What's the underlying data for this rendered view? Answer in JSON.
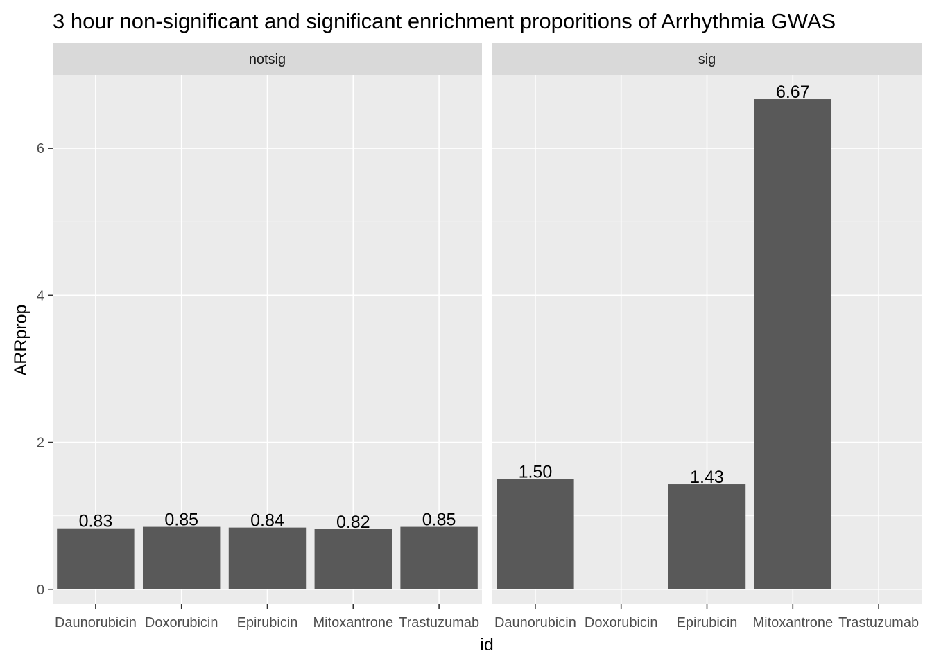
{
  "chart_data": {
    "type": "bar",
    "title": "3 hour non-significant and significant enrichment proporitions of Arrhythmia GWAS",
    "xlabel": "id",
    "ylabel": "ARRprop",
    "categories": [
      "Daunorubicin",
      "Doxorubicin",
      "Epirubicin",
      "Mitoxantrone",
      "Trastuzumab"
    ],
    "ylim": [
      -0.2,
      7.0
    ],
    "yticks": [
      0,
      2,
      4,
      6
    ],
    "grid": true,
    "legend": "none",
    "bar_color": "#595959",
    "panel_bg": "#ebebeb",
    "strip_bg": "#d9d9d9",
    "panels": [
      {
        "strip": "notsig",
        "values": [
          0.83,
          0.85,
          0.84,
          0.82,
          0.85
        ],
        "labels": [
          "0.83",
          "0.85",
          "0.84",
          "0.82",
          "0.85"
        ]
      },
      {
        "strip": "sig",
        "values": [
          1.5,
          null,
          1.43,
          6.67,
          null
        ],
        "labels": [
          "1.50",
          "",
          "1.43",
          "6.67",
          ""
        ]
      }
    ]
  }
}
